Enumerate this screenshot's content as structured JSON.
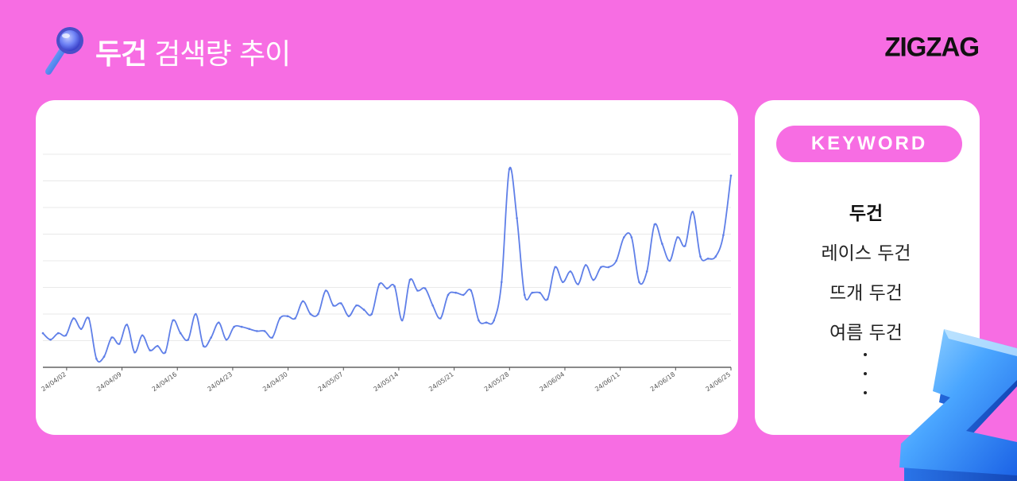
{
  "header": {
    "keyword": "두건",
    "title_rest": "검색량 추이",
    "icon": "magnifier-icon"
  },
  "brand": {
    "logo": "ZIGZAG"
  },
  "colors": {
    "background": "#f76de3",
    "line": "#5f7fe8",
    "pill": "#f76de3"
  },
  "sidebar": {
    "pill_label": "KEYWORD",
    "keywords": [
      {
        "label": "두건",
        "active": true
      },
      {
        "label": "레이스 두건",
        "active": false
      },
      {
        "label": "뜨개 두건",
        "active": false
      },
      {
        "label": "여름 두건",
        "active": false
      }
    ],
    "more_icon": "vertical-ellipsis-icon"
  },
  "chart_data": {
    "type": "line",
    "x_labels": [
      "24/04/02",
      "24/04/09",
      "24/04/16",
      "24/04/23",
      "24/04/30",
      "24/05/07",
      "24/05/14",
      "24/05/21",
      "24/05/28",
      "24/06/04",
      "24/06/11",
      "24/06/18",
      "24/06/25"
    ],
    "x_start": "2024-03-30",
    "x_end": "2024-06-25",
    "grid": "horizontal",
    "y_gridlines": 8,
    "y_range": [
      0,
      100
    ],
    "series": [
      {
        "values": [
          16,
          13,
          16,
          15,
          23,
          18,
          23,
          4,
          5,
          14,
          11,
          20,
          7,
          15,
          8,
          10,
          7,
          22,
          16,
          13,
          25,
          10,
          14,
          21,
          13,
          19,
          19,
          18,
          17,
          17,
          14,
          23,
          24,
          23,
          31,
          25,
          25,
          36,
          29,
          30,
          24,
          29,
          27,
          25,
          39,
          37,
          38,
          22,
          41,
          36,
          37,
          29,
          23,
          34,
          35,
          34,
          36,
          22,
          21,
          22,
          40,
          93,
          70,
          34,
          35,
          35,
          32,
          47,
          40,
          45,
          39,
          48,
          41,
          47,
          47,
          50,
          61,
          61,
          40,
          45,
          67,
          58,
          50,
          61,
          57,
          73,
          52,
          51,
          52,
          62,
          90
        ]
      }
    ]
  }
}
